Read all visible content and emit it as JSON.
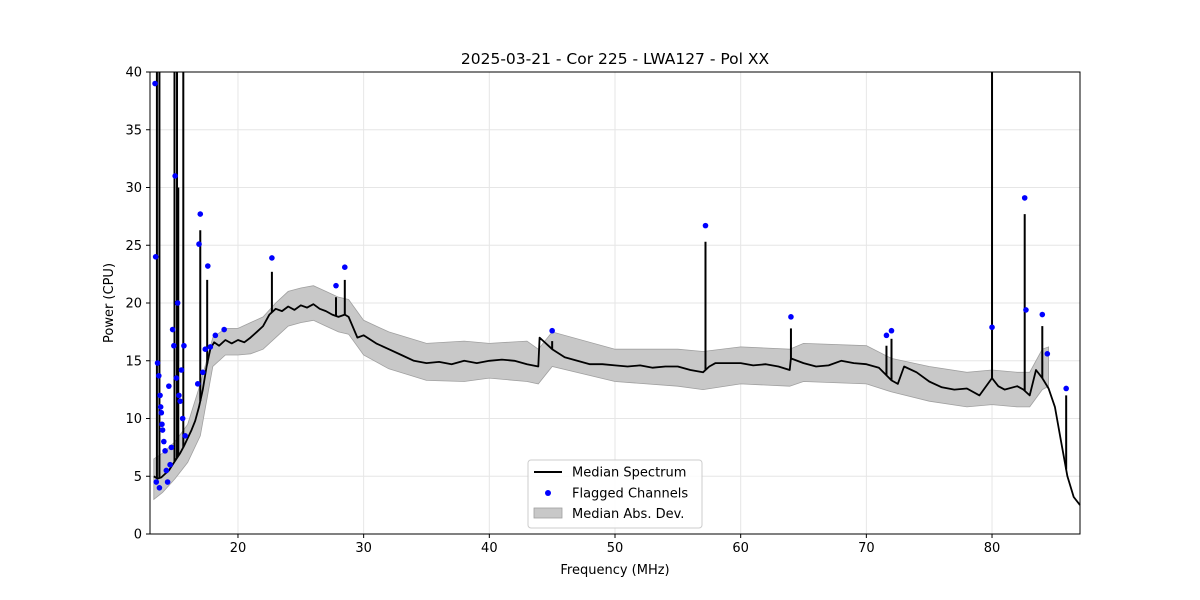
{
  "chart_data": {
    "type": "line",
    "title": "2025-03-21 - Cor 225 - LWA127 - Pol XX",
    "xlabel": "Frequency (MHz)",
    "ylabel": "Power (CPU)",
    "xlim": [
      13,
      87
    ],
    "ylim": [
      0,
      40
    ],
    "x_ticks": [
      20,
      30,
      40,
      50,
      60,
      70,
      80
    ],
    "y_ticks": [
      0,
      5,
      10,
      15,
      20,
      25,
      30,
      35,
      40
    ],
    "grid": true,
    "legend_position": "bottom-center",
    "colors": {
      "median": "#000000",
      "flagged": "#0000ff",
      "mad": "#c8c8c8",
      "mad_edge": "#a0a0a0",
      "grid": "#e6e6e6"
    },
    "series": [
      {
        "name": "Median Spectrum",
        "kind": "line",
        "x": [
          13.3,
          13.6,
          13.9,
          14.2,
          14.5,
          14.8,
          15.1,
          15.4,
          15.7,
          16.0,
          16.3,
          16.6,
          16.9,
          17.2,
          17.5,
          17.8,
          18.1,
          18.5,
          19.0,
          19.5,
          20.0,
          20.5,
          21.0,
          21.5,
          22.0,
          22.5,
          23.0,
          23.5,
          24.0,
          24.5,
          25.0,
          25.5,
          26.0,
          26.5,
          27.0,
          27.5,
          28.0,
          28.5,
          28.8,
          29.5,
          30.0,
          31.0,
          32.0,
          33.0,
          34.0,
          35.0,
          36.0,
          37.0,
          38.0,
          39.0,
          40.0,
          41.0,
          42.0,
          43.0,
          43.9,
          44.0,
          45.0,
          46.0,
          47.0,
          48.0,
          49.0,
          50.0,
          51.0,
          52.0,
          53.0,
          54.0,
          55.0,
          56.0,
          57.0,
          57.5,
          58.0,
          59.0,
          60.0,
          61.0,
          62.0,
          63.0,
          63.9,
          64.0,
          65.0,
          66.0,
          67.0,
          68.0,
          69.0,
          70.0,
          71.0,
          72.0,
          72.5,
          73.0,
          74.0,
          75.0,
          76.0,
          77.0,
          78.0,
          79.0,
          80.0,
          80.5,
          81.0,
          82.0,
          82.5,
          83.0,
          83.5,
          84.0,
          84.5,
          85.0,
          85.5,
          86.0,
          86.5,
          87.0
        ],
        "y": [
          5.0,
          4.8,
          4.9,
          5.2,
          5.5,
          6.0,
          6.5,
          7.0,
          7.6,
          8.3,
          9.0,
          9.8,
          11.0,
          12.5,
          14.5,
          16.0,
          16.6,
          16.3,
          16.8,
          16.5,
          16.8,
          16.6,
          17.0,
          17.5,
          18.0,
          19.0,
          19.5,
          19.3,
          19.7,
          19.4,
          19.8,
          19.6,
          19.9,
          19.5,
          19.3,
          19.0,
          18.8,
          19.0,
          18.8,
          17.0,
          17.2,
          16.5,
          16.0,
          15.5,
          15.0,
          14.8,
          14.9,
          14.7,
          15.0,
          14.8,
          15.0,
          15.1,
          15.0,
          14.7,
          14.5,
          17.0,
          16.0,
          15.3,
          15.0,
          14.7,
          14.7,
          14.6,
          14.5,
          14.6,
          14.4,
          14.5,
          14.5,
          14.2,
          14.0,
          14.5,
          14.8,
          14.8,
          14.8,
          14.6,
          14.7,
          14.5,
          14.2,
          15.2,
          14.8,
          14.5,
          14.6,
          15.0,
          14.8,
          14.7,
          14.4,
          13.3,
          13.0,
          14.5,
          14.0,
          13.2,
          12.7,
          12.5,
          12.6,
          12.0,
          13.5,
          12.8,
          12.5,
          12.8,
          12.5,
          12.0,
          14.2,
          13.5,
          12.6,
          11.0,
          8.0,
          5.0,
          3.2,
          2.5
        ]
      },
      {
        "name": "Flagged Channels",
        "kind": "scatter",
        "x": [
          13.4,
          13.45,
          13.5,
          13.6,
          13.7,
          13.75,
          13.8,
          13.85,
          13.9,
          13.95,
          14.0,
          14.1,
          14.2,
          14.3,
          14.4,
          14.5,
          14.6,
          14.7,
          14.8,
          14.9,
          15.0,
          15.1,
          15.2,
          15.3,
          15.4,
          15.5,
          15.6,
          15.7,
          15.8,
          16.8,
          16.9,
          17.0,
          17.2,
          17.4,
          17.6,
          17.8,
          18.2,
          18.9,
          22.7,
          27.8,
          28.5,
          45.0,
          57.2,
          64.0,
          71.6,
          72.0,
          80.0,
          82.6,
          82.7,
          84.0,
          84.4,
          85.9
        ],
        "y": [
          39.0,
          24.0,
          4.5,
          14.8,
          13.7,
          4.0,
          12.0,
          11.0,
          10.5,
          9.5,
          9.0,
          8.0,
          7.2,
          5.5,
          4.5,
          12.8,
          6.0,
          7.5,
          17.7,
          16.3,
          31.0,
          13.5,
          20.0,
          12.0,
          11.5,
          14.2,
          10.0,
          16.3,
          8.5,
          13.0,
          25.1,
          27.7,
          14.0,
          16.0,
          23.2,
          16.2,
          17.2,
          17.7,
          23.9,
          21.5,
          23.1,
          17.6,
          26.7,
          18.8,
          17.2,
          17.6,
          17.9,
          29.1,
          19.4,
          19.0,
          15.6,
          12.6
        ]
      },
      {
        "name": "Median Abs. Dev.",
        "kind": "band",
        "x": [
          13.3,
          14.0,
          15.0,
          16.0,
          17.0,
          18.0,
          19.0,
          20.0,
          21.0,
          22.0,
          23.0,
          24.0,
          25.0,
          26.0,
          27.0,
          28.0,
          28.8,
          30.0,
          32.0,
          35.0,
          38.0,
          40.0,
          43.0,
          43.9,
          45.0,
          50.0,
          55.0,
          57.0,
          60.0,
          63.9,
          65.0,
          70.0,
          72.0,
          75.0,
          78.0,
          80.0,
          82.0,
          83.0,
          84.0,
          84.5
        ],
        "lower": [
          3.0,
          3.6,
          4.8,
          6.2,
          8.5,
          14.5,
          15.5,
          15.5,
          15.6,
          16.0,
          17.0,
          18.0,
          18.3,
          18.5,
          18.0,
          17.5,
          17.3,
          15.5,
          14.3,
          13.3,
          13.2,
          13.5,
          13.2,
          13.0,
          14.5,
          13.2,
          12.8,
          12.5,
          13.0,
          12.8,
          13.2,
          13.0,
          12.3,
          11.5,
          11.0,
          11.2,
          11.0,
          11.0,
          12.5,
          12.8
        ],
        "upper": [
          6.5,
          7.0,
          8.0,
          9.5,
          13.0,
          17.0,
          17.8,
          17.8,
          18.3,
          18.8,
          20.0,
          21.0,
          21.3,
          21.5,
          21.0,
          20.5,
          20.3,
          18.5,
          17.5,
          16.5,
          16.7,
          16.5,
          16.7,
          16.0,
          17.5,
          16.0,
          16.0,
          15.8,
          16.2,
          16.0,
          16.5,
          16.3,
          15.2,
          14.5,
          14.0,
          14.2,
          14.0,
          14.0,
          16.0,
          16.2
        ]
      }
    ],
    "spikes": [
      {
        "x": 13.55,
        "y": 40
      },
      {
        "x": 13.75,
        "y": 40
      },
      {
        "x": 14.95,
        "y": 40
      },
      {
        "x": 15.15,
        "y": 40
      },
      {
        "x": 15.25,
        "y": 30
      },
      {
        "x": 15.65,
        "y": 40
      },
      {
        "x": 17.0,
        "y": 26.3
      },
      {
        "x": 17.55,
        "y": 22.0
      },
      {
        "x": 22.7,
        "y": 22.7
      },
      {
        "x": 27.8,
        "y": 20.5
      },
      {
        "x": 28.5,
        "y": 22.0
      },
      {
        "x": 45.0,
        "y": 16.7
      },
      {
        "x": 57.2,
        "y": 25.3
      },
      {
        "x": 64.0,
        "y": 17.8
      },
      {
        "x": 71.6,
        "y": 16.3
      },
      {
        "x": 72.0,
        "y": 16.9
      },
      {
        "x": 80.0,
        "y": 40
      },
      {
        "x": 82.6,
        "y": 27.7
      },
      {
        "x": 84.0,
        "y": 18.0
      },
      {
        "x": 85.9,
        "y": 12.0
      }
    ]
  }
}
